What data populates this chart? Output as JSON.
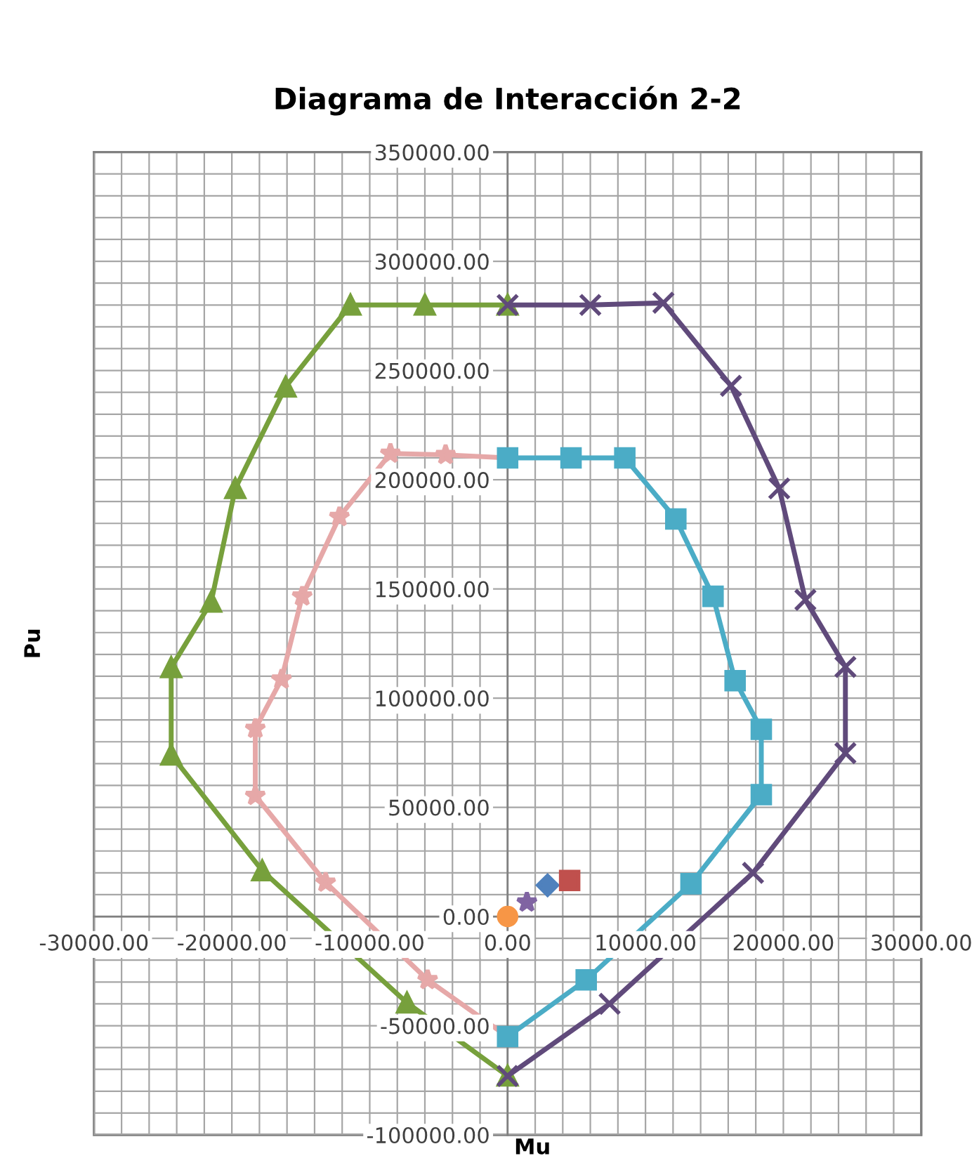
{
  "chart_data": {
    "type": "line",
    "title": "Diagrama de Interacción 2-2",
    "xlabel": "Mu",
    "ylabel": "Pu",
    "xlim": [
      -30000,
      30000
    ],
    "ylim": [
      -100000,
      350000
    ],
    "xticks": [
      {
        "value": -30000,
        "label": "-30000.00"
      },
      {
        "value": -28000,
        "label": null
      },
      {
        "value": -26000,
        "label": null
      },
      {
        "value": -24000,
        "label": null
      },
      {
        "value": -22000,
        "label": null
      },
      {
        "value": -20000,
        "label": "-20000.00"
      },
      {
        "value": -18000,
        "label": null
      },
      {
        "value": -16000,
        "label": null
      },
      {
        "value": -14000,
        "label": null
      },
      {
        "value": -12000,
        "label": null
      },
      {
        "value": -10000,
        "label": "-10000.00"
      },
      {
        "value": -8000,
        "label": null
      },
      {
        "value": -6000,
        "label": null
      },
      {
        "value": -4000,
        "label": null
      },
      {
        "value": -2000,
        "label": null
      },
      {
        "value": 0,
        "label": "0.00"
      },
      {
        "value": 2000,
        "label": null
      },
      {
        "value": 4000,
        "label": null
      },
      {
        "value": 6000,
        "label": null
      },
      {
        "value": 8000,
        "label": null
      },
      {
        "value": 10000,
        "label": "10000.00"
      },
      {
        "value": 12000,
        "label": null
      },
      {
        "value": 14000,
        "label": null
      },
      {
        "value": 16000,
        "label": null
      },
      {
        "value": 18000,
        "label": null
      },
      {
        "value": 20000,
        "label": "20000.00"
      },
      {
        "value": 22000,
        "label": null
      },
      {
        "value": 24000,
        "label": null
      },
      {
        "value": 26000,
        "label": null
      },
      {
        "value": 28000,
        "label": null
      },
      {
        "value": 30000,
        "label": "30000.00"
      }
    ],
    "yticks": [
      {
        "value": -100000,
        "label": "-100000.00"
      },
      {
        "value": -90000,
        "label": null
      },
      {
        "value": -80000,
        "label": null
      },
      {
        "value": -70000,
        "label": null
      },
      {
        "value": -60000,
        "label": null
      },
      {
        "value": -50000,
        "label": "-50000.00"
      },
      {
        "value": -40000,
        "label": null
      },
      {
        "value": -30000,
        "label": null
      },
      {
        "value": -20000,
        "label": null
      },
      {
        "value": -10000,
        "label": null
      },
      {
        "value": 0,
        "label": "0.00"
      },
      {
        "value": 10000,
        "label": null
      },
      {
        "value": 20000,
        "label": null
      },
      {
        "value": 30000,
        "label": null
      },
      {
        "value": 40000,
        "label": null
      },
      {
        "value": 50000,
        "label": "50000.00"
      },
      {
        "value": 60000,
        "label": null
      },
      {
        "value": 70000,
        "label": null
      },
      {
        "value": 80000,
        "label": null
      },
      {
        "value": 90000,
        "label": null
      },
      {
        "value": 100000,
        "label": "100000.00"
      },
      {
        "value": 110000,
        "label": null
      },
      {
        "value": 120000,
        "label": null
      },
      {
        "value": 130000,
        "label": null
      },
      {
        "value": 140000,
        "label": null
      },
      {
        "value": 150000,
        "label": "150000.00"
      },
      {
        "value": 160000,
        "label": null
      },
      {
        "value": 170000,
        "label": null
      },
      {
        "value": 180000,
        "label": null
      },
      {
        "value": 190000,
        "label": null
      },
      {
        "value": 200000,
        "label": "200000.00"
      },
      {
        "value": 210000,
        "label": null
      },
      {
        "value": 220000,
        "label": null
      },
      {
        "value": 230000,
        "label": null
      },
      {
        "value": 240000,
        "label": null
      },
      {
        "value": 250000,
        "label": "250000.00"
      },
      {
        "value": 260000,
        "label": null
      },
      {
        "value": 270000,
        "label": null
      },
      {
        "value": 280000,
        "label": null
      },
      {
        "value": 290000,
        "label": null
      },
      {
        "value": 300000,
        "label": "300000.00"
      },
      {
        "value": 310000,
        "label": null
      },
      {
        "value": 320000,
        "label": null
      },
      {
        "value": 330000,
        "label": null
      },
      {
        "value": 340000,
        "label": null
      },
      {
        "value": 350000,
        "label": "350000.00"
      }
    ],
    "grid": true,
    "series": [
      {
        "color": "#77a03c",
        "marker": "triangle",
        "x": [
          0,
          -6000,
          -11400,
          -16100,
          -19750,
          -21500,
          -24400,
          -24400,
          -17800,
          -7300,
          0
        ],
        "values": [
          280000,
          280000,
          280000,
          242500,
          196000,
          144000,
          114000,
          74000,
          21000,
          -39500,
          -73000
        ]
      },
      {
        "color": "#604a7b",
        "marker": "cross",
        "x": [
          0,
          6000,
          11300,
          16200,
          19700,
          21600,
          24500,
          24500,
          17800,
          7400,
          0
        ],
        "values": [
          280000,
          280000,
          281000,
          243000,
          196000,
          145000,
          114300,
          74800,
          20000,
          -40000,
          -73000
        ]
      },
      {
        "color": "#e6a8a8",
        "marker": "star",
        "x": [
          0,
          -4500,
          -8500,
          -12200,
          -14900,
          -16400,
          -18300,
          -18300,
          -13200,
          -5800,
          0
        ],
        "values": [
          210000,
          211400,
          212000,
          183000,
          146600,
          108600,
          86000,
          55300,
          15600,
          -29000,
          -55000
        ]
      },
      {
        "color": "#4bacc6",
        "marker": "square",
        "x": [
          0,
          4600,
          8500,
          12200,
          14900,
          16500,
          18400,
          18400,
          13300,
          5700,
          0
        ],
        "values": [
          210000,
          210000,
          210000,
          182000,
          146600,
          108000,
          85700,
          55800,
          15000,
          -29000,
          -55000
        ]
      },
      {
        "type": "scatter",
        "color": "#f79646",
        "marker": "circle",
        "x": [
          0
        ],
        "values": [
          0
        ]
      },
      {
        "type": "scatter",
        "color": "#8064a2",
        "marker": "star",
        "x": [
          1400
        ],
        "values": [
          6500
        ]
      },
      {
        "type": "scatter",
        "color": "#4f81bd",
        "marker": "diamond",
        "x": [
          2900
        ],
        "values": [
          14300
        ]
      },
      {
        "type": "scatter",
        "color": "#c0504d",
        "marker": "square",
        "x": [
          4500
        ],
        "values": [
          16500
        ]
      }
    ]
  }
}
